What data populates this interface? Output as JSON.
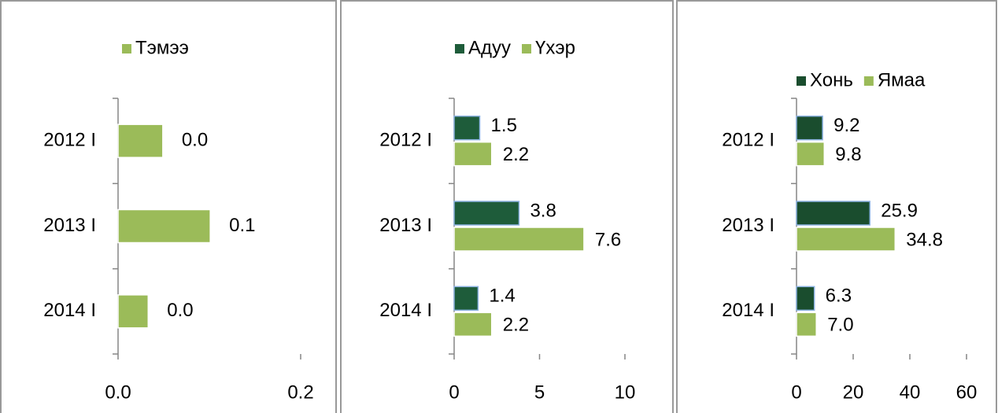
{
  "chart_data": [
    {
      "type": "bar",
      "orientation": "horizontal",
      "categories": [
        "2012 I",
        "2013 I",
        "2014 I"
      ],
      "series": [
        {
          "name": "Тэмээ",
          "color": "#9bbb59",
          "values": [
            0.049,
            0.101,
            0.033
          ],
          "value_labels": [
            "0.0",
            "0.1",
            "0.0"
          ]
        }
      ],
      "xlim": [
        0,
        0.2
      ],
      "xticks": [
        {
          "value": 0,
          "label": "0.0"
        },
        {
          "value": 0.2,
          "label": "0.2"
        }
      ],
      "legend": "top"
    },
    {
      "type": "bar",
      "orientation": "horizontal",
      "categories": [
        "2012 I",
        "2013 I",
        "2014 I"
      ],
      "series": [
        {
          "name": "Адуу",
          "color": "#1e5c3a",
          "values": [
            1.5,
            3.8,
            1.4
          ]
        },
        {
          "name": "Үхэр",
          "color": "#9bbb59",
          "values": [
            2.2,
            7.6,
            2.2
          ]
        }
      ],
      "xlim": [
        0,
        10
      ],
      "xticks": [
        0,
        5,
        10
      ],
      "legend": "top"
    },
    {
      "type": "bar",
      "orientation": "horizontal",
      "categories": [
        "2012 I",
        "2013 I",
        "2014 I"
      ],
      "series": [
        {
          "name": "Хонь",
          "color": "#1a4d2e",
          "values": [
            9.2,
            25.9,
            6.3
          ]
        },
        {
          "name": "Ямаа",
          "color": "#9bbb59",
          "values": [
            9.8,
            34.8,
            7.0
          ],
          "value_labels": [
            "9.8",
            "34.8",
            "7.0"
          ]
        }
      ],
      "xlim": [
        0,
        60
      ],
      "xticks": [
        0,
        20,
        40,
        60
      ],
      "legend": "top"
    }
  ]
}
